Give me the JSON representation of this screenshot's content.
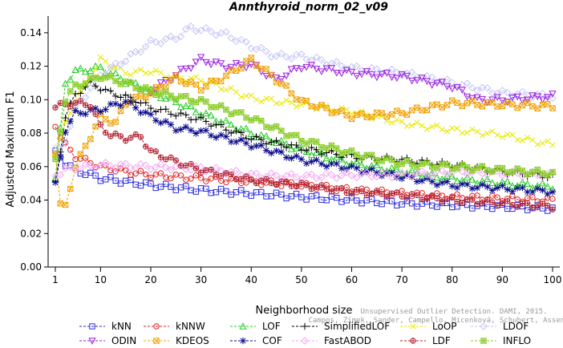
{
  "chart_data": {
    "type": "line",
    "title": "Annthyroid_norm_02_v09",
    "xlabel": "Neighborhood size",
    "ylabel": "Adjusted Maximum F1",
    "xlim": [
      1,
      100
    ],
    "ylim": [
      0,
      0.15
    ],
    "x_ticks": [
      "1",
      "10",
      "20",
      "30",
      "40",
      "50",
      "60",
      "70",
      "80",
      "90",
      "100"
    ],
    "y_ticks": [
      "0.00",
      "0.02",
      "0.04",
      "0.06",
      "0.08",
      "0.10",
      "0.12",
      "0.14"
    ],
    "grid": false,
    "legend_position": "bottom",
    "watermark": {
      "line1": "Campos, Zimek, Sander, Campello, Micenková, Schubert, Assent, Houle",
      "line2": "Unsupervised Outlier Detection. DAMI, 2015."
    },
    "series": [
      {
        "name": "kNN",
        "color": "#2a2ae0",
        "marker": "square",
        "points": [
          [
            1,
            0.068
          ],
          [
            2,
            0.066
          ],
          [
            3,
            0.062
          ],
          [
            5,
            0.058
          ],
          [
            10,
            0.053
          ],
          [
            15,
            0.051
          ],
          [
            20,
            0.049
          ],
          [
            30,
            0.046
          ],
          [
            40,
            0.044
          ],
          [
            50,
            0.042
          ],
          [
            60,
            0.04
          ],
          [
            70,
            0.038
          ],
          [
            80,
            0.037
          ],
          [
            90,
            0.036
          ],
          [
            100,
            0.035
          ]
        ]
      },
      {
        "name": "kNNW",
        "color": "#e02020",
        "marker": "circle",
        "points": [
          [
            1,
            0.085
          ],
          [
            2,
            0.078
          ],
          [
            3,
            0.073
          ],
          [
            5,
            0.066
          ],
          [
            10,
            0.06
          ],
          [
            15,
            0.057
          ],
          [
            20,
            0.055
          ],
          [
            30,
            0.053
          ],
          [
            40,
            0.051
          ],
          [
            50,
            0.049
          ],
          [
            60,
            0.046
          ],
          [
            70,
            0.044
          ],
          [
            80,
            0.042
          ],
          [
            90,
            0.041
          ],
          [
            100,
            0.04
          ]
        ]
      },
      {
        "name": "LOF",
        "color": "#22cc22",
        "marker": "triangle-up",
        "points": [
          [
            1,
            0.053
          ],
          [
            3,
            0.11
          ],
          [
            5,
            0.117
          ],
          [
            10,
            0.119
          ],
          [
            15,
            0.111
          ],
          [
            20,
            0.105
          ],
          [
            30,
            0.092
          ],
          [
            40,
            0.08
          ],
          [
            50,
            0.07
          ],
          [
            60,
            0.062
          ],
          [
            70,
            0.057
          ],
          [
            80,
            0.053
          ],
          [
            90,
            0.05
          ],
          [
            100,
            0.048
          ]
        ]
      },
      {
        "name": "SimplifiedLOF",
        "color": "#000000",
        "marker": "plus",
        "points": [
          [
            1,
            0.05
          ],
          [
            3,
            0.09
          ],
          [
            5,
            0.103
          ],
          [
            8,
            0.11
          ],
          [
            12,
            0.104
          ],
          [
            17,
            0.1
          ],
          [
            20,
            0.095
          ],
          [
            30,
            0.088
          ],
          [
            40,
            0.077
          ],
          [
            50,
            0.071
          ],
          [
            60,
            0.066
          ],
          [
            70,
            0.064
          ],
          [
            80,
            0.061
          ],
          [
            90,
            0.057
          ],
          [
            100,
            0.054
          ]
        ]
      },
      {
        "name": "LoOP",
        "color": "#e8e800",
        "marker": "x",
        "points": [
          [
            1,
            0.068
          ],
          [
            3,
            0.085
          ],
          [
            5,
            0.1
          ],
          [
            10,
            0.124
          ],
          [
            15,
            0.116
          ],
          [
            20,
            0.117
          ],
          [
            25,
            0.113
          ],
          [
            30,
            0.112
          ],
          [
            40,
            0.101
          ],
          [
            50,
            0.097
          ],
          [
            60,
            0.093
          ],
          [
            70,
            0.086
          ],
          [
            80,
            0.082
          ],
          [
            90,
            0.079
          ],
          [
            100,
            0.073
          ]
        ]
      },
      {
        "name": "LDOF",
        "color": "#c4c4f4",
        "marker": "diamond",
        "points": [
          [
            1,
            0.07
          ],
          [
            3,
            0.075
          ],
          [
            5,
            0.095
          ],
          [
            10,
            0.115
          ],
          [
            15,
            0.124
          ],
          [
            20,
            0.134
          ],
          [
            25,
            0.137
          ],
          [
            28,
            0.143
          ],
          [
            35,
            0.139
          ],
          [
            40,
            0.132
          ],
          [
            45,
            0.126
          ],
          [
            50,
            0.126
          ],
          [
            60,
            0.119
          ],
          [
            70,
            0.116
          ],
          [
            80,
            0.11
          ],
          [
            90,
            0.104
          ],
          [
            100,
            0.102
          ]
        ]
      },
      {
        "name": "ODIN",
        "color": "#9a1ce0",
        "marker": "triangle-down",
        "points": [
          [
            20,
            0.105
          ],
          [
            25,
            0.115
          ],
          [
            30,
            0.124
          ],
          [
            35,
            0.12
          ],
          [
            40,
            0.121
          ],
          [
            45,
            0.112
          ],
          [
            50,
            0.12
          ],
          [
            60,
            0.116
          ],
          [
            70,
            0.114
          ],
          [
            80,
            0.108
          ],
          [
            85,
            0.1
          ],
          [
            90,
            0.1
          ],
          [
            100,
            0.102
          ]
        ]
      },
      {
        "name": "KDEOS",
        "color": "#f0a000",
        "marker": "square-x",
        "points": [
          [
            1,
            0.069
          ],
          [
            2,
            0.037
          ],
          [
            3,
            0.036
          ],
          [
            5,
            0.06
          ],
          [
            10,
            0.09
          ],
          [
            13,
            0.086
          ],
          [
            15,
            0.098
          ],
          [
            20,
            0.104
          ],
          [
            25,
            0.113
          ],
          [
            30,
            0.107
          ],
          [
            35,
            0.114
          ],
          [
            40,
            0.124
          ],
          [
            45,
            0.112
          ],
          [
            50,
            0.099
          ],
          [
            60,
            0.09
          ],
          [
            70,
            0.092
          ],
          [
            80,
            0.098
          ],
          [
            90,
            0.097
          ],
          [
            100,
            0.096
          ]
        ]
      },
      {
        "name": "COF",
        "color": "#0a0a8a",
        "marker": "asterisk",
        "points": [
          [
            1,
            0.049
          ],
          [
            3,
            0.082
          ],
          [
            5,
            0.092
          ],
          [
            10,
            0.094
          ],
          [
            15,
            0.099
          ],
          [
            20,
            0.09
          ],
          [
            25,
            0.083
          ],
          [
            30,
            0.081
          ],
          [
            40,
            0.073
          ],
          [
            50,
            0.064
          ],
          [
            60,
            0.059
          ],
          [
            70,
            0.054
          ],
          [
            80,
            0.049
          ],
          [
            90,
            0.047
          ],
          [
            100,
            0.045
          ]
        ]
      },
      {
        "name": "FastABOD",
        "color": "#f0a8f0",
        "marker": "diamond",
        "points": [
          [
            1,
            0.055
          ],
          [
            3,
            0.058
          ],
          [
            5,
            0.059
          ],
          [
            10,
            0.061
          ],
          [
            20,
            0.06
          ],
          [
            30,
            0.059
          ],
          [
            40,
            0.055
          ],
          [
            50,
            0.054
          ],
          [
            60,
            0.055
          ],
          [
            70,
            0.055
          ],
          [
            80,
            0.057
          ],
          [
            90,
            0.056
          ],
          [
            100,
            0.055
          ]
        ]
      },
      {
        "name": "LDF",
        "color": "#b02030",
        "marker": "circle-plus",
        "points": [
          [
            1,
            0.096
          ],
          [
            3,
            0.097
          ],
          [
            5,
            0.098
          ],
          [
            8,
            0.097
          ],
          [
            10,
            0.084
          ],
          [
            12,
            0.079
          ],
          [
            15,
            0.077
          ],
          [
            18,
            0.078
          ],
          [
            20,
            0.069
          ],
          [
            25,
            0.063
          ],
          [
            30,
            0.058
          ],
          [
            40,
            0.052
          ],
          [
            50,
            0.049
          ],
          [
            60,
            0.045
          ],
          [
            70,
            0.043
          ],
          [
            80,
            0.04
          ],
          [
            90,
            0.038
          ],
          [
            100,
            0.036
          ]
        ]
      },
      {
        "name": "INFLO",
        "color": "#88cc22",
        "marker": "square-star",
        "points": [
          [
            1,
            0.063
          ],
          [
            3,
            0.1
          ],
          [
            5,
            0.108
          ],
          [
            10,
            0.114
          ],
          [
            15,
            0.11
          ],
          [
            20,
            0.105
          ],
          [
            30,
            0.099
          ],
          [
            40,
            0.089
          ],
          [
            50,
            0.076
          ],
          [
            60,
            0.068
          ],
          [
            70,
            0.062
          ],
          [
            80,
            0.06
          ],
          [
            90,
            0.058
          ],
          [
            100,
            0.056
          ]
        ]
      }
    ]
  }
}
